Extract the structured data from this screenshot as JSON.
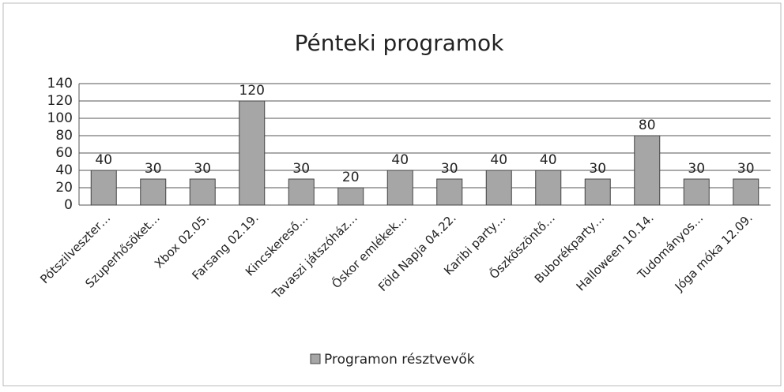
{
  "chart_data": {
    "type": "bar",
    "title": "Pénteki programok",
    "categories": [
      "Pótszilveszter…",
      "Szuperhősöket…",
      "Xbox 02.05.",
      "Farsang 02.19.",
      "Kincskereső…",
      "Tavaszi játszóház…",
      "Őskor emlékek…",
      "Föld Napja 04.22.",
      "Karibi party…",
      "Őszköszöntő…",
      "Buborékparty…",
      "Halloween 10.14.",
      "Tudományos…",
      "Jóga móka 12.09."
    ],
    "series": [
      {
        "name": "Programon résztvevők",
        "color": "#a6a6a6",
        "values": [
          40,
          30,
          30,
          120,
          30,
          20,
          40,
          30,
          40,
          40,
          30,
          80,
          30,
          30
        ]
      }
    ],
    "ylim": [
      0,
      140
    ],
    "yticks": [
      0,
      20,
      40,
      60,
      80,
      100,
      120,
      140
    ],
    "grid": true,
    "legend": "bottom"
  }
}
